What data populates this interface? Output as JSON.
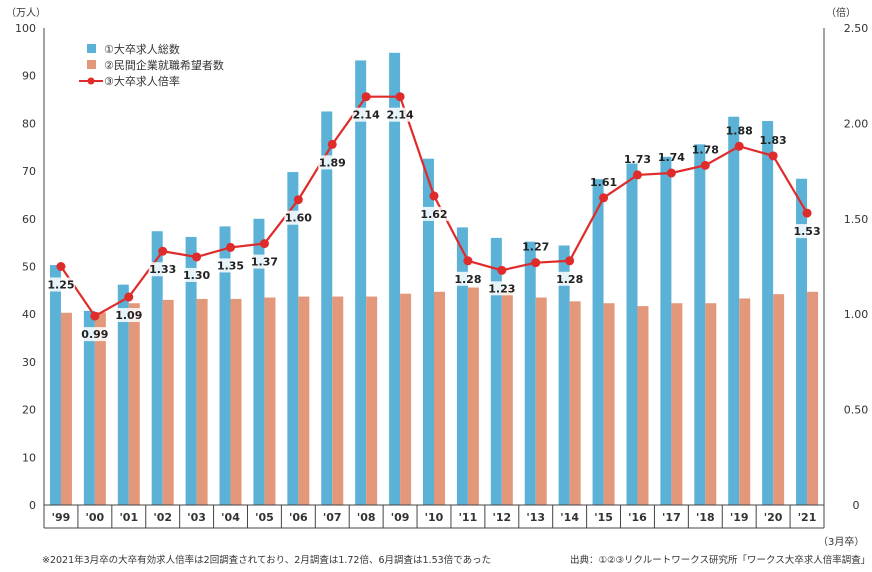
{
  "chart_data": {
    "type": "bar",
    "categories": [
      "'99",
      "'00",
      "'01",
      "'02",
      "'03",
      "'04",
      "'05",
      "'06",
      "'07",
      "'08",
      "'09",
      "'10",
      "'11",
      "'12",
      "'13",
      "'14",
      "'15",
      "'16",
      "'17",
      "'18",
      "'19",
      "'20",
      "'21"
    ],
    "series": [
      {
        "name": "①大卒求人総数",
        "type": "bar",
        "axis": "left",
        "color": "#5bb1d6",
        "values": [
          50.3,
          40.7,
          46.2,
          57.4,
          56.2,
          58.4,
          60.0,
          69.8,
          82.5,
          93.2,
          94.8,
          72.6,
          58.2,
          56.0,
          55.2,
          54.4,
          68.3,
          71.6,
          73.0,
          75.6,
          81.4,
          80.5,
          68.4
        ]
      },
      {
        "name": "②民間企業就職希望者数",
        "type": "bar",
        "axis": "left",
        "color": "#e4987b",
        "values": [
          40.3,
          40.4,
          42.3,
          43.0,
          43.2,
          43.2,
          43.5,
          43.7,
          43.7,
          43.7,
          44.3,
          44.7,
          45.6,
          45.5,
          43.5,
          42.7,
          42.3,
          41.7,
          42.3,
          42.3,
          43.3,
          44.2,
          44.7
        ]
      },
      {
        "name": "③大卒求人倍率",
        "type": "line",
        "axis": "right",
        "color": "#e02b2b",
        "values": [
          1.25,
          0.99,
          1.09,
          1.33,
          1.3,
          1.35,
          1.37,
          1.6,
          1.89,
          2.14,
          2.14,
          1.62,
          1.28,
          1.23,
          1.27,
          1.28,
          1.61,
          1.73,
          1.74,
          1.78,
          1.88,
          1.83,
          1.53
        ],
        "labels": [
          "1.25",
          "0.99",
          "1.09",
          "1.33",
          "1.30",
          "1.35",
          "1.37",
          "1.60",
          "1.89",
          "2.14",
          "2.14",
          "1.62",
          "1.28",
          "1.23",
          "1.27",
          "1.28",
          "1.61",
          "1.73",
          "1.74",
          "1.78",
          "1.88",
          "1.83",
          "1.53"
        ]
      }
    ],
    "y_left": {
      "unit": "（万人）",
      "ylim": [
        0,
        100
      ],
      "ticks": [
        "0",
        "10",
        "20",
        "30",
        "40",
        "50",
        "60",
        "70",
        "80",
        "90",
        "100"
      ]
    },
    "y_right": {
      "unit": "（倍）",
      "ylim": [
        0,
        2.5
      ],
      "ticks": [
        "0",
        "0.50",
        "1.00",
        "1.50",
        "2.00",
        "2.50"
      ]
    },
    "x_unit": "（3月卒）",
    "legend_position": "top-left",
    "grid": false
  },
  "footnote": "※2021年3月卒の大卒有効求人倍率は2回調査されており、2月調査は1.72倍、6月調査は1.53倍であった",
  "source": "出典：①②③リクルートワークス研究所「ワークス大卒求人倍率調査」"
}
